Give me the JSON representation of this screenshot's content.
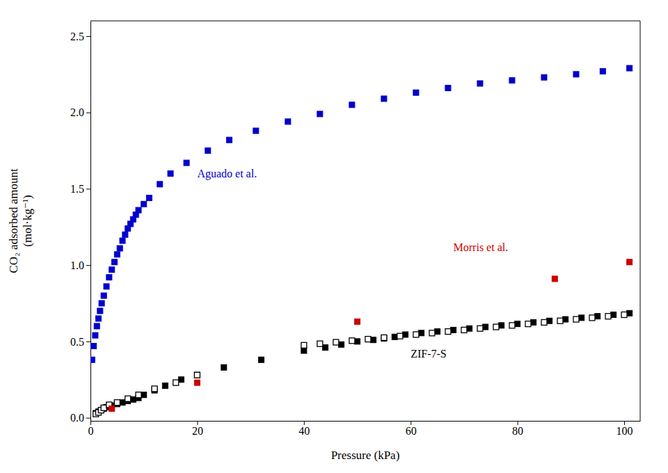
{
  "chart_data": {
    "type": "scatter",
    "xlabel": "Pressure (kPa)",
    "ylabel": "CO₂ adsorbed amount\n(mol·kg⁻¹)",
    "xlim": [
      0,
      103
    ],
    "ylim": [
      -0.02,
      2.6
    ],
    "xticks": [
      0,
      20,
      40,
      60,
      80,
      100
    ],
    "yticks": [
      {
        "value": 0.0,
        "label": "0.0"
      },
      0.5,
      {
        "value": 1.0,
        "label": "1.0"
      },
      1.5,
      {
        "value": 2.0,
        "label": "2.0"
      },
      2.5
    ],
    "grid": false,
    "series": [
      {
        "color": "#000000",
        "marker": "square",
        "x": [
          1.0,
          1.5,
          2.0,
          2.5,
          3.0,
          3.5,
          4.0,
          5.0,
          6.0,
          7.0,
          8.0,
          9.0,
          10.0,
          12.0,
          14.0,
          17.0,
          20.0,
          25.0,
          32.0,
          40.0,
          44.0,
          47.0,
          50.0,
          53.0,
          55.0,
          57.0,
          59.0,
          62.0,
          65.0,
          68.0,
          71.0,
          74.0,
          77.0,
          80.0,
          83.0,
          86.0,
          89.0,
          92.0,
          95.0,
          98.0,
          101.0
        ],
        "values": [
          0.03,
          0.04,
          0.05,
          0.06,
          0.07,
          0.075,
          0.08,
          0.09,
          0.1,
          0.11,
          0.12,
          0.13,
          0.15,
          0.18,
          0.21,
          0.25,
          0.28,
          0.33,
          0.38,
          0.44,
          0.46,
          0.48,
          0.5,
          0.51,
          0.52,
          0.53,
          0.545,
          0.555,
          0.565,
          0.575,
          0.585,
          0.595,
          0.605,
          0.615,
          0.625,
          0.635,
          0.645,
          0.655,
          0.665,
          0.675,
          0.685
        ]
      },
      {
        "color": "#000000",
        "marker": "open-square",
        "x": [
          1.0,
          1.5,
          2.0,
          2.5,
          3.5,
          5.0,
          7.0,
          9.0,
          12.0,
          16.0,
          20.0,
          40.0,
          43.0,
          46.0,
          49.0,
          52.0,
          55.0,
          58.0,
          61.0,
          64.0,
          67.0,
          70.0,
          73.0,
          76.0,
          79.0,
          82.0,
          85.0,
          88.0,
          91.0,
          94.0,
          97.0,
          100.0
        ],
        "values": [
          0.025,
          0.035,
          0.05,
          0.065,
          0.085,
          0.1,
          0.125,
          0.15,
          0.19,
          0.23,
          0.28,
          0.475,
          0.485,
          0.495,
          0.505,
          0.515,
          0.525,
          0.535,
          0.545,
          0.555,
          0.565,
          0.575,
          0.585,
          0.595,
          0.605,
          0.615,
          0.625,
          0.635,
          0.645,
          0.655,
          0.665,
          0.675
        ]
      },
      {
        "color": "#cc0000",
        "marker": "square",
        "x": [
          4.0,
          20.0,
          50.0,
          87.0,
          101.0
        ],
        "values": [
          0.06,
          0.23,
          0.63,
          0.91,
          1.02
        ]
      },
      {
        "color": "#0000cc",
        "marker": "square",
        "x": [
          0.3,
          0.6,
          0.9,
          1.2,
          1.5,
          1.8,
          2.1,
          2.5,
          3.0,
          3.5,
          4.0,
          4.5,
          5.0,
          5.5,
          6.0,
          6.5,
          7.0,
          7.5,
          8.0,
          8.5,
          9.0,
          10.0,
          11.0,
          13.0,
          15.0,
          18.0,
          22.0,
          26.0,
          31.0,
          37.0,
          43.0,
          49.0,
          55.0,
          61.0,
          67.0,
          73.0,
          79.0,
          85.0,
          91.0,
          96.0,
          101.0
        ],
        "values": [
          0.38,
          0.47,
          0.54,
          0.6,
          0.65,
          0.7,
          0.75,
          0.8,
          0.86,
          0.92,
          0.97,
          1.02,
          1.07,
          1.11,
          1.16,
          1.2,
          1.24,
          1.27,
          1.3,
          1.33,
          1.36,
          1.4,
          1.44,
          1.53,
          1.6,
          1.67,
          1.75,
          1.82,
          1.88,
          1.94,
          1.99,
          2.05,
          2.09,
          2.13,
          2.16,
          2.19,
          2.21,
          2.23,
          2.25,
          2.27,
          2.29
        ]
      }
    ],
    "annotations": [
      {
        "text": "ZIF-7-S",
        "x": 60,
        "y": 0.38,
        "color": "#000000"
      },
      {
        "text": "Morris et al.",
        "x": 68,
        "y": 1.08,
        "color": "#cc0000"
      },
      {
        "text": "Aguado et al.",
        "x": 20,
        "y": 1.56,
        "color": "#0000cc"
      }
    ]
  }
}
